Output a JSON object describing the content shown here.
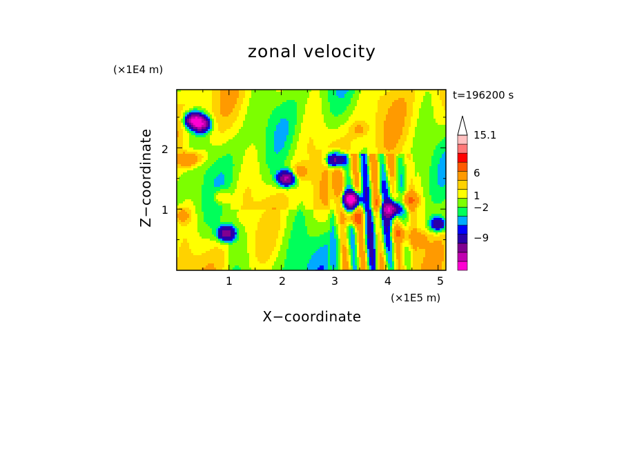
{
  "chart_data": {
    "type": "heatmap",
    "title": "zonal velocity",
    "xlabel": "X−coordinate",
    "ylabel": "Z−coordinate",
    "x_unit": "(×1E5 m)",
    "y_unit": "(×1E4 m)",
    "time_label": "t=196200 s",
    "xlim": [
      0,
      5.15
    ],
    "ylim": [
      0,
      2.95
    ],
    "x_ticks": [
      "1",
      "2",
      "3",
      "4",
      "5"
    ],
    "y_ticks": [
      "1",
      "2"
    ],
    "colorbar": {
      "levels": [
        -15,
        -12,
        -9,
        -6,
        -3,
        -2,
        -1,
        0,
        1,
        2,
        3,
        6,
        9,
        12,
        15.1
      ],
      "colors": [
        "#ff00d2",
        "#c000b0",
        "#800090",
        "#2a00a8",
        "#0000ff",
        "#00aaff",
        "#00ff5a",
        "#7cff00",
        "#ffff00",
        "#ffd200",
        "#ff9a00",
        "#ff5a00",
        "#ff0000",
        "#ff7878",
        "#ffc0c0"
      ],
      "tick_labels": [
        "15.1",
        "6",
        "1",
        "−2",
        "−9"
      ],
      "tick_values": [
        15.1,
        6,
        1,
        -2,
        -9
      ]
    },
    "grid": false,
    "features": [
      {
        "x": 0.33,
        "z": 2.45,
        "value": -12
      },
      {
        "x": 0.48,
        "z": 2.38,
        "value": -9
      },
      {
        "x": 0.2,
        "z": 1.8,
        "value": 6
      },
      {
        "x": 0.42,
        "z": 1.85,
        "value": 3
      },
      {
        "x": 0.85,
        "z": 1.2,
        "value": 4
      },
      {
        "x": 0.95,
        "z": 0.6,
        "value": -9
      },
      {
        "x": 2.1,
        "z": 1.5,
        "value": -10
      },
      {
        "x": 2.35,
        "z": 1.6,
        "value": 4
      },
      {
        "x": 3.05,
        "z": 1.8,
        "value": -10
      },
      {
        "x": 3.35,
        "z": 1.15,
        "value": -14
      },
      {
        "x": 3.4,
        "z": 0.85,
        "value": 7
      },
      {
        "x": 3.85,
        "z": 1.1,
        "value": 5
      },
      {
        "x": 4.1,
        "z": 1.0,
        "value": -10
      },
      {
        "x": 4.45,
        "z": 1.15,
        "value": 6
      },
      {
        "x": 4.25,
        "z": 0.6,
        "value": 5
      },
      {
        "x": 4.6,
        "z": 0.5,
        "value": 4
      },
      {
        "x": 5.0,
        "z": 0.75,
        "value": -6
      },
      {
        "x": 0.1,
        "z": 0.9,
        "value": 4
      },
      {
        "x": 3.5,
        "z": 2.3,
        "value": 3
      }
    ]
  }
}
